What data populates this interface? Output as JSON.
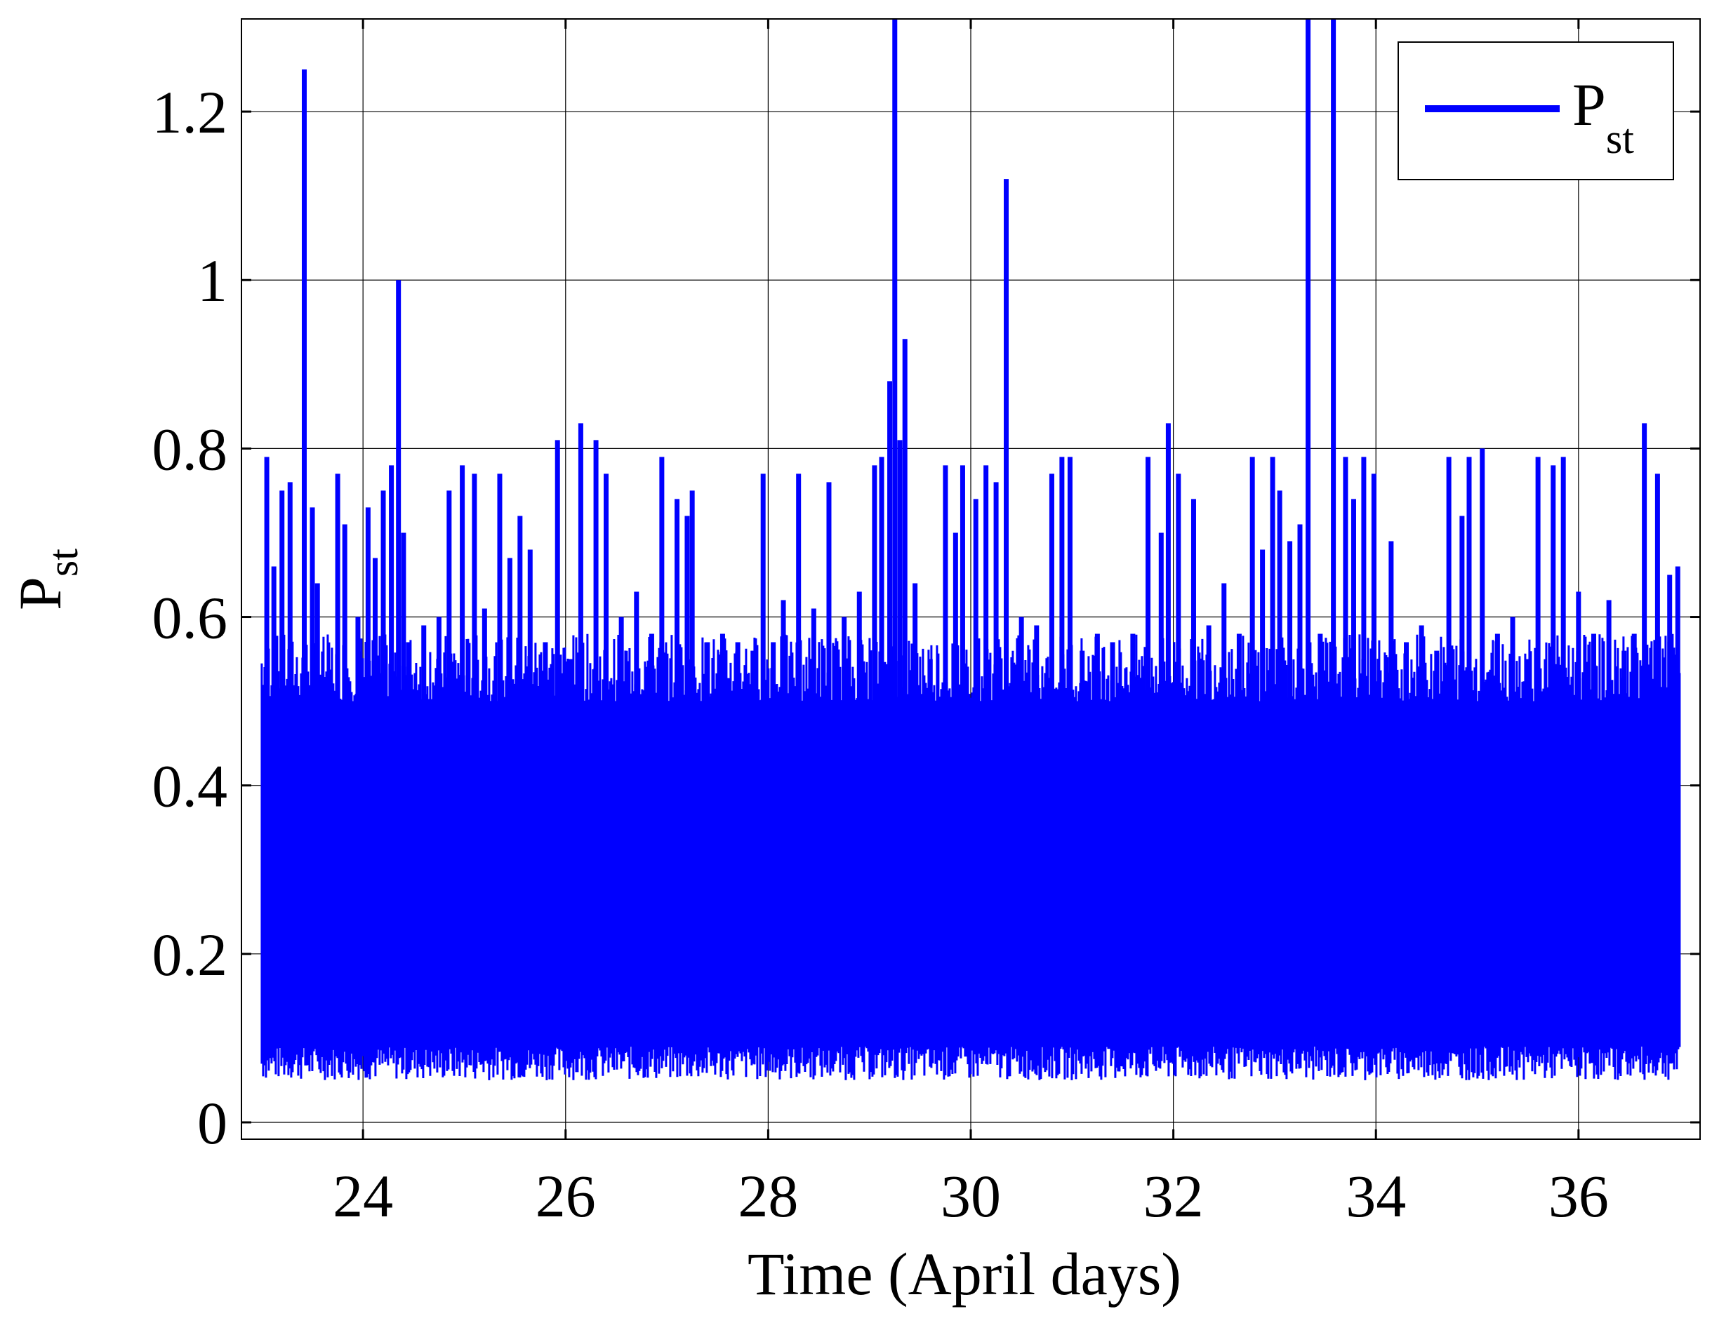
{
  "chart_data": {
    "type": "line",
    "title": "",
    "xlabel": "Time (April days)",
    "ylabel": {
      "main": "P",
      "sub": "st"
    },
    "xlim": [
      22.8,
      37.2
    ],
    "ylim": [
      -0.02,
      1.31
    ],
    "x_ticks": [
      24,
      26,
      28,
      30,
      32,
      34,
      36
    ],
    "y_ticks": [
      0,
      0.2,
      0.4,
      0.6,
      0.8,
      1,
      1.2
    ],
    "x_tick_labels": [
      "24",
      "26",
      "28",
      "30",
      "32",
      "34",
      "36"
    ],
    "y_tick_labels": [
      "0",
      "0.2",
      "0.4",
      "0.6",
      "0.8",
      "1",
      "1.2"
    ],
    "grid": true,
    "legend": {
      "position": "top-right",
      "entries": [
        {
          "main": "P",
          "sub": "st"
        }
      ]
    },
    "series": [
      {
        "name": "P_st",
        "color": "#0000FF",
        "x_range": [
          23.0,
          37.0
        ],
        "baseline_min": [
          0.05,
          0.09
        ],
        "body_max": [
          0.5,
          0.58
        ],
        "peaks": [
          {
            "x": 23.05,
            "y": 0.79
          },
          {
            "x": 23.12,
            "y": 0.66
          },
          {
            "x": 23.2,
            "y": 0.75
          },
          {
            "x": 23.28,
            "y": 0.76
          },
          {
            "x": 23.42,
            "y": 1.25
          },
          {
            "x": 23.5,
            "y": 0.73
          },
          {
            "x": 23.55,
            "y": 0.64
          },
          {
            "x": 23.75,
            "y": 0.77
          },
          {
            "x": 23.82,
            "y": 0.71
          },
          {
            "x": 23.95,
            "y": 0.6
          },
          {
            "x": 24.05,
            "y": 0.73
          },
          {
            "x": 24.12,
            "y": 0.67
          },
          {
            "x": 24.2,
            "y": 0.75
          },
          {
            "x": 24.28,
            "y": 0.78
          },
          {
            "x": 24.35,
            "y": 1.0
          },
          {
            "x": 24.4,
            "y": 0.7
          },
          {
            "x": 24.45,
            "y": 0.57
          },
          {
            "x": 24.6,
            "y": 0.59
          },
          {
            "x": 24.75,
            "y": 0.6
          },
          {
            "x": 24.85,
            "y": 0.75
          },
          {
            "x": 24.98,
            "y": 0.78
          },
          {
            "x": 25.1,
            "y": 0.77
          },
          {
            "x": 25.2,
            "y": 0.61
          },
          {
            "x": 25.35,
            "y": 0.77
          },
          {
            "x": 25.45,
            "y": 0.67
          },
          {
            "x": 25.55,
            "y": 0.72
          },
          {
            "x": 25.65,
            "y": 0.68
          },
          {
            "x": 25.8,
            "y": 0.57
          },
          {
            "x": 25.92,
            "y": 0.81
          },
          {
            "x": 26.05,
            "y": 0.55
          },
          {
            "x": 26.15,
            "y": 0.83
          },
          {
            "x": 26.3,
            "y": 0.81
          },
          {
            "x": 26.4,
            "y": 0.77
          },
          {
            "x": 26.55,
            "y": 0.6
          },
          {
            "x": 26.7,
            "y": 0.63
          },
          {
            "x": 26.85,
            "y": 0.58
          },
          {
            "x": 26.95,
            "y": 0.79
          },
          {
            "x": 27.1,
            "y": 0.74
          },
          {
            "x": 27.2,
            "y": 0.72
          },
          {
            "x": 27.25,
            "y": 0.75
          },
          {
            "x": 27.4,
            "y": 0.57
          },
          {
            "x": 27.55,
            "y": 0.58
          },
          {
            "x": 27.7,
            "y": 0.57
          },
          {
            "x": 27.85,
            "y": 0.56
          },
          {
            "x": 27.95,
            "y": 0.77
          },
          {
            "x": 28.05,
            "y": 0.57
          },
          {
            "x": 28.15,
            "y": 0.62
          },
          {
            "x": 28.3,
            "y": 0.77
          },
          {
            "x": 28.45,
            "y": 0.61
          },
          {
            "x": 28.6,
            "y": 0.76
          },
          {
            "x": 28.75,
            "y": 0.6
          },
          {
            "x": 28.9,
            "y": 0.63
          },
          {
            "x": 29.05,
            "y": 0.78
          },
          {
            "x": 29.12,
            "y": 0.79
          },
          {
            "x": 29.2,
            "y": 0.88
          },
          {
            "x": 29.25,
            "y": 1.4
          },
          {
            "x": 29.3,
            "y": 0.81
          },
          {
            "x": 29.35,
            "y": 0.93
          },
          {
            "x": 29.45,
            "y": 0.64
          },
          {
            "x": 29.6,
            "y": 0.55
          },
          {
            "x": 29.75,
            "y": 0.78
          },
          {
            "x": 29.85,
            "y": 0.7
          },
          {
            "x": 29.92,
            "y": 0.78
          },
          {
            "x": 30.05,
            "y": 0.74
          },
          {
            "x": 30.15,
            "y": 0.78
          },
          {
            "x": 30.25,
            "y": 0.76
          },
          {
            "x": 30.35,
            "y": 1.12
          },
          {
            "x": 30.5,
            "y": 0.6
          },
          {
            "x": 30.65,
            "y": 0.59
          },
          {
            "x": 30.8,
            "y": 0.77
          },
          {
            "x": 30.9,
            "y": 0.79
          },
          {
            "x": 30.98,
            "y": 0.79
          },
          {
            "x": 31.1,
            "y": 0.56
          },
          {
            "x": 31.25,
            "y": 0.58
          },
          {
            "x": 31.4,
            "y": 0.57
          },
          {
            "x": 31.6,
            "y": 0.58
          },
          {
            "x": 31.75,
            "y": 0.79
          },
          {
            "x": 31.88,
            "y": 0.7
          },
          {
            "x": 31.95,
            "y": 0.83
          },
          {
            "x": 32.05,
            "y": 0.77
          },
          {
            "x": 32.2,
            "y": 0.74
          },
          {
            "x": 32.35,
            "y": 0.59
          },
          {
            "x": 32.5,
            "y": 0.64
          },
          {
            "x": 32.65,
            "y": 0.58
          },
          {
            "x": 32.78,
            "y": 0.79
          },
          {
            "x": 32.88,
            "y": 0.68
          },
          {
            "x": 32.98,
            "y": 0.79
          },
          {
            "x": 33.05,
            "y": 0.75
          },
          {
            "x": 33.15,
            "y": 0.69
          },
          {
            "x": 33.25,
            "y": 0.71
          },
          {
            "x": 33.33,
            "y": 1.4
          },
          {
            "x": 33.45,
            "y": 0.58
          },
          {
            "x": 33.58,
            "y": 1.4
          },
          {
            "x": 33.7,
            "y": 0.79
          },
          {
            "x": 33.78,
            "y": 0.74
          },
          {
            "x": 33.88,
            "y": 0.79
          },
          {
            "x": 33.98,
            "y": 0.77
          },
          {
            "x": 34.15,
            "y": 0.69
          },
          {
            "x": 34.3,
            "y": 0.57
          },
          {
            "x": 34.45,
            "y": 0.59
          },
          {
            "x": 34.6,
            "y": 0.56
          },
          {
            "x": 34.72,
            "y": 0.79
          },
          {
            "x": 34.85,
            "y": 0.72
          },
          {
            "x": 34.92,
            "y": 0.79
          },
          {
            "x": 35.05,
            "y": 0.8
          },
          {
            "x": 35.2,
            "y": 0.58
          },
          {
            "x": 35.35,
            "y": 0.6
          },
          {
            "x": 35.5,
            "y": 0.55
          },
          {
            "x": 35.6,
            "y": 0.79
          },
          {
            "x": 35.75,
            "y": 0.78
          },
          {
            "x": 35.85,
            "y": 0.79
          },
          {
            "x": 36.0,
            "y": 0.63
          },
          {
            "x": 36.15,
            "y": 0.58
          },
          {
            "x": 36.3,
            "y": 0.62
          },
          {
            "x": 36.45,
            "y": 0.56
          },
          {
            "x": 36.55,
            "y": 0.58
          },
          {
            "x": 36.65,
            "y": 0.83
          },
          {
            "x": 36.78,
            "y": 0.77
          },
          {
            "x": 36.9,
            "y": 0.65
          },
          {
            "x": 36.98,
            "y": 0.66
          }
        ]
      }
    ]
  }
}
